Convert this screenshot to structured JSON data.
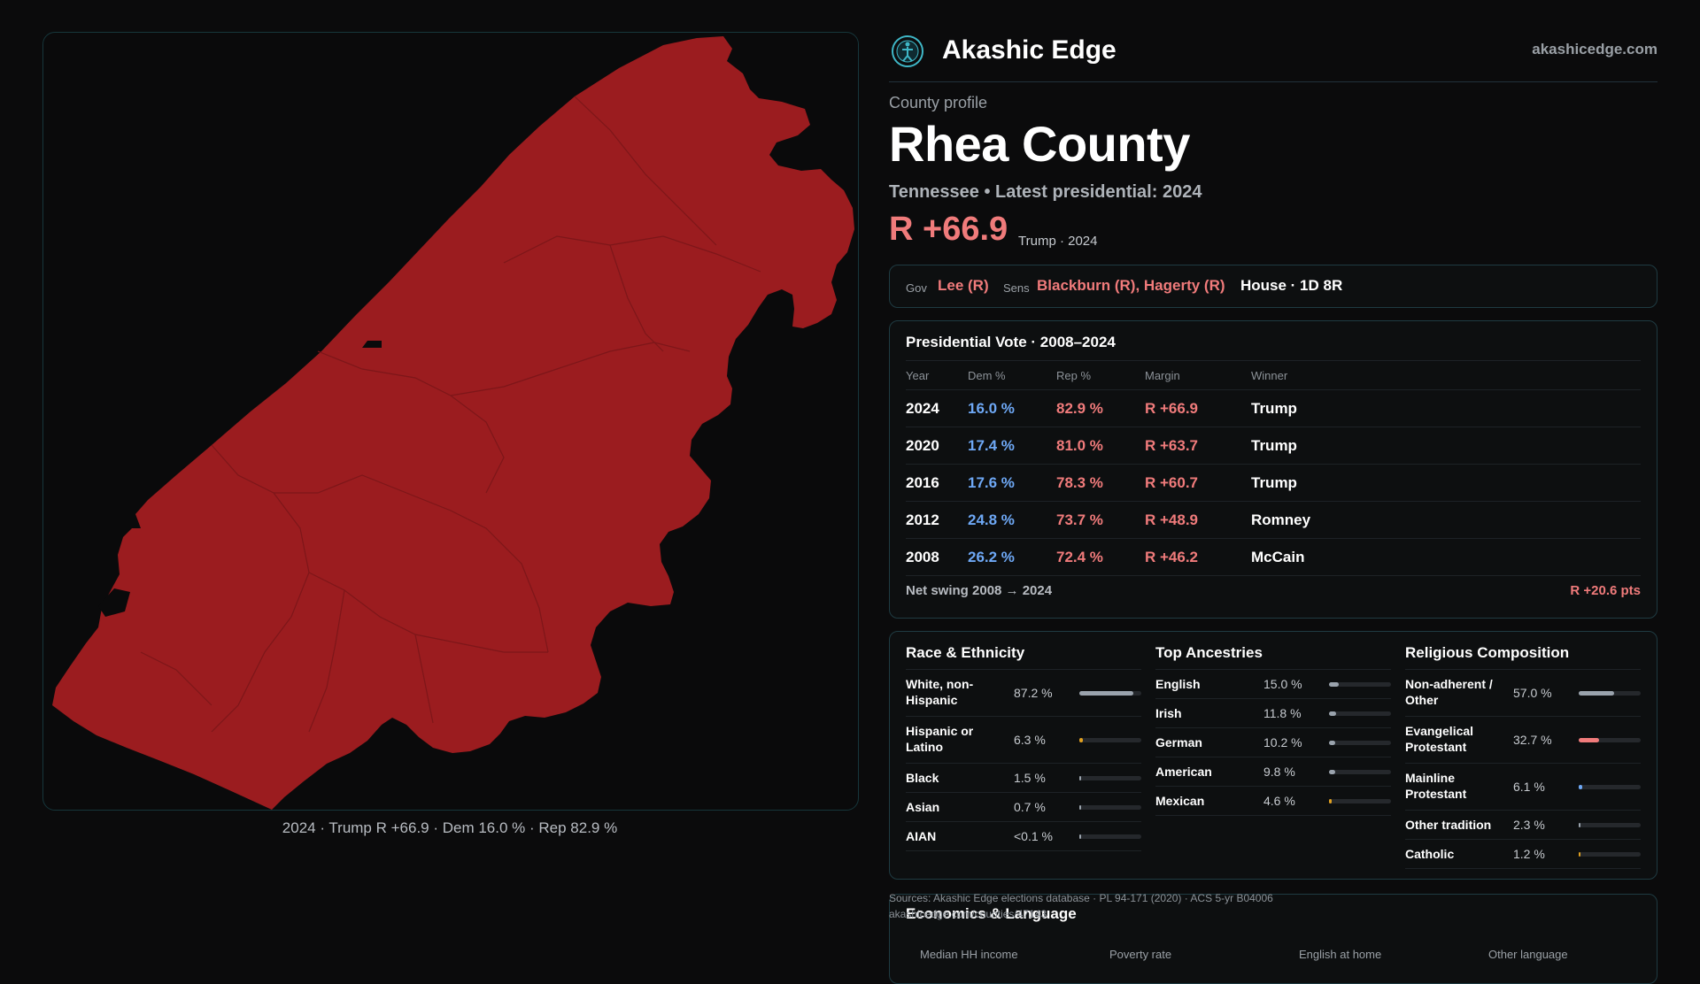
{
  "map": {
    "caption": "2024 · Trump R +66.9 · Dem 16.0 % · Rep 82.9 %",
    "fill_color": "#9b1c1f",
    "border_color": "#16363b"
  },
  "brand": {
    "name": "Akashic Edge",
    "url": "akashicedge.com",
    "logo_icon": "globe-figure-icon"
  },
  "profile": {
    "eyebrow": "County profile",
    "county_name": "Rhea County",
    "subtitle": "Tennessee • Latest presidential: 2024",
    "margin": "R +66.9",
    "margin_note": "Trump · 2024"
  },
  "officials": {
    "gov_label": "Gov",
    "gov_value": "Lee (R)",
    "sens_label": "Sens",
    "sens_value": "Blackburn (R), Hagerty (R)",
    "house": "House · 1D 8R"
  },
  "presidential": {
    "title": "Presidential Vote · 2008–2024",
    "headers": [
      "Year",
      "Dem %",
      "Rep %",
      "Margin",
      "Winner"
    ],
    "rows": [
      {
        "year": "2024",
        "dem": "16.0 %",
        "rep": "82.9 %",
        "margin": "R +66.9",
        "winner": "Trump"
      },
      {
        "year": "2020",
        "dem": "17.4 %",
        "rep": "81.0 %",
        "margin": "R +63.7",
        "winner": "Trump"
      },
      {
        "year": "2016",
        "dem": "17.6 %",
        "rep": "78.3 %",
        "margin": "R +60.7",
        "winner": "Trump"
      },
      {
        "year": "2012",
        "dem": "24.8 %",
        "rep": "73.7 %",
        "margin": "R +48.9",
        "winner": "Romney"
      },
      {
        "year": "2008",
        "dem": "26.2 %",
        "rep": "72.4 %",
        "margin": "R +46.2",
        "winner": "McCain"
      }
    ],
    "swing_label": "Net swing 2008 → 2024",
    "swing_value": "R +20.6 pts"
  },
  "race": {
    "title": "Race & Ethnicity",
    "items": [
      {
        "label": "White, non-Hispanic",
        "value": "87.2 %",
        "level": 0.872,
        "color": "#9aa3ad"
      },
      {
        "label": "Hispanic or Latino",
        "value": "6.3 %",
        "level": 0.063,
        "color": "#e0a020"
      },
      {
        "label": "Black",
        "value": "1.5 %",
        "level": 0.015,
        "color": "#9aa3ad"
      },
      {
        "label": "Asian",
        "value": "0.7 %",
        "level": 0.007,
        "color": "#9aa3ad"
      },
      {
        "label": "AIAN",
        "value": "<0.1 %",
        "level": 0.0,
        "color": "#9aa3ad"
      }
    ]
  },
  "ancestry": {
    "title": "Top Ancestries",
    "items": [
      {
        "label": "English",
        "value": "15.0 %",
        "level": 0.15,
        "color": "#9aa3ad"
      },
      {
        "label": "Irish",
        "value": "11.8 %",
        "level": 0.118,
        "color": "#9aa3ad"
      },
      {
        "label": "German",
        "value": "10.2 %",
        "level": 0.102,
        "color": "#9aa3ad"
      },
      {
        "label": "American",
        "value": "9.8 %",
        "level": 0.098,
        "color": "#9aa3ad"
      },
      {
        "label": "Mexican",
        "value": "4.6 %",
        "level": 0.046,
        "color": "#e0a020"
      }
    ]
  },
  "religion": {
    "title": "Religious Composition",
    "items": [
      {
        "label": "Non-adherent / Other",
        "value": "57.0 %",
        "level": 0.57,
        "color": "#9aa3ad"
      },
      {
        "label": "Evangelical Protestant",
        "value": "32.7 %",
        "level": 0.327,
        "color": "#f07b7b"
      },
      {
        "label": "Mainline Protestant",
        "value": "6.1 %",
        "level": 0.061,
        "color": "#6ea8f5"
      },
      {
        "label": "Other tradition",
        "value": "2.3 %",
        "level": 0.023,
        "color": "#9aa3ad"
      },
      {
        "label": "Catholic",
        "value": "1.2 %",
        "level": 0.012,
        "color": "#e0a020"
      }
    ]
  },
  "sources": {
    "line1": "Sources: Akashic Edge elections database · PL 94-171 (2020) · ACS 5-yr B04006",
    "line2": "akashicedge.com/counties/47143"
  },
  "economics": {
    "title": "Economics & Language",
    "labels": [
      "Median HH income",
      "Poverty rate",
      "English at home",
      "Other language"
    ]
  }
}
